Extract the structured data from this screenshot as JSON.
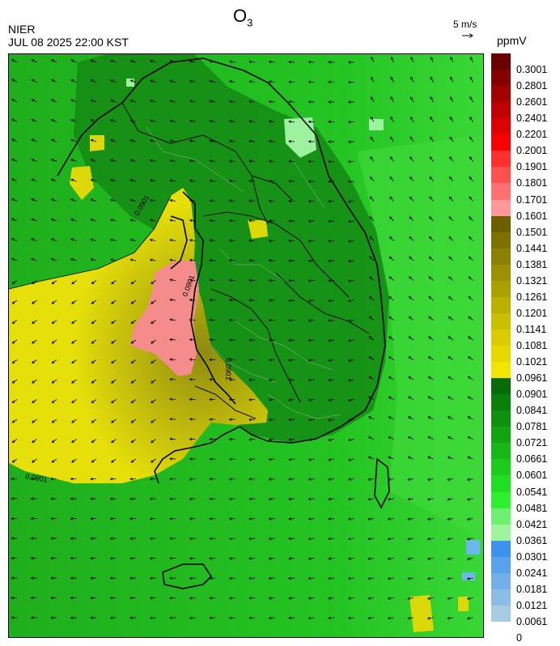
{
  "header": {
    "org": "NIER",
    "datetime": "JUL 08 2025 22:00 KST",
    "title_main": "O",
    "title_sub": "3",
    "wind_scale_label": "5 m/s",
    "unit_label": "ppmV"
  },
  "map": {
    "contour_labels": [
      "0.0901",
      "0.0901",
      "0.0901",
      "0.0901"
    ],
    "colors": {
      "background_green": "#22b61e",
      "dark_green": "#148a14",
      "light_green": "#5ae84a",
      "yellow": "#ddd80a",
      "olive": "#a6a410",
      "pink": "#f48c8c",
      "pale_green": "#9df2a0"
    }
  },
  "colorbar": {
    "labels": [
      "0.3001",
      "0.2801",
      "0.2601",
      "0.2401",
      "0.2201",
      "0.2001",
      "0.1901",
      "0.1801",
      "0.1701",
      "0.1601",
      "0.1501",
      "0.1441",
      "0.1381",
      "0.1321",
      "0.1261",
      "0.1201",
      "0.1141",
      "0.1081",
      "0.1021",
      "0.0961",
      "0.0901",
      "0.0841",
      "0.0781",
      "0.0721",
      "0.0661",
      "0.0601",
      "0.0541",
      "0.0481",
      "0.0421",
      "0.0361",
      "0.0301",
      "0.0241",
      "0.0181",
      "0.0121",
      "0.0061",
      "0"
    ],
    "colors": [
      "#6a0000",
      "#870000",
      "#a30000",
      "#c00000",
      "#dc0000",
      "#f70000",
      "#ff3030",
      "#ff5050",
      "#ff7070",
      "#ff9898",
      "#6c5f00",
      "#7d7200",
      "#8b8100",
      "#9b9000",
      "#aaa000",
      "#bbb000",
      "#cbc000",
      "#d9cd00",
      "#e6d900",
      "#f2e600",
      "#076c07",
      "#0a800a",
      "#0e920e",
      "#12a412",
      "#16b816",
      "#1ccc1c",
      "#22de22",
      "#2ef02e",
      "#70f070",
      "#9ef59e",
      "#3d92f0",
      "#5aa2ee",
      "#73b0ea",
      "#8cbde6",
      "#a6cbe2"
    ]
  }
}
